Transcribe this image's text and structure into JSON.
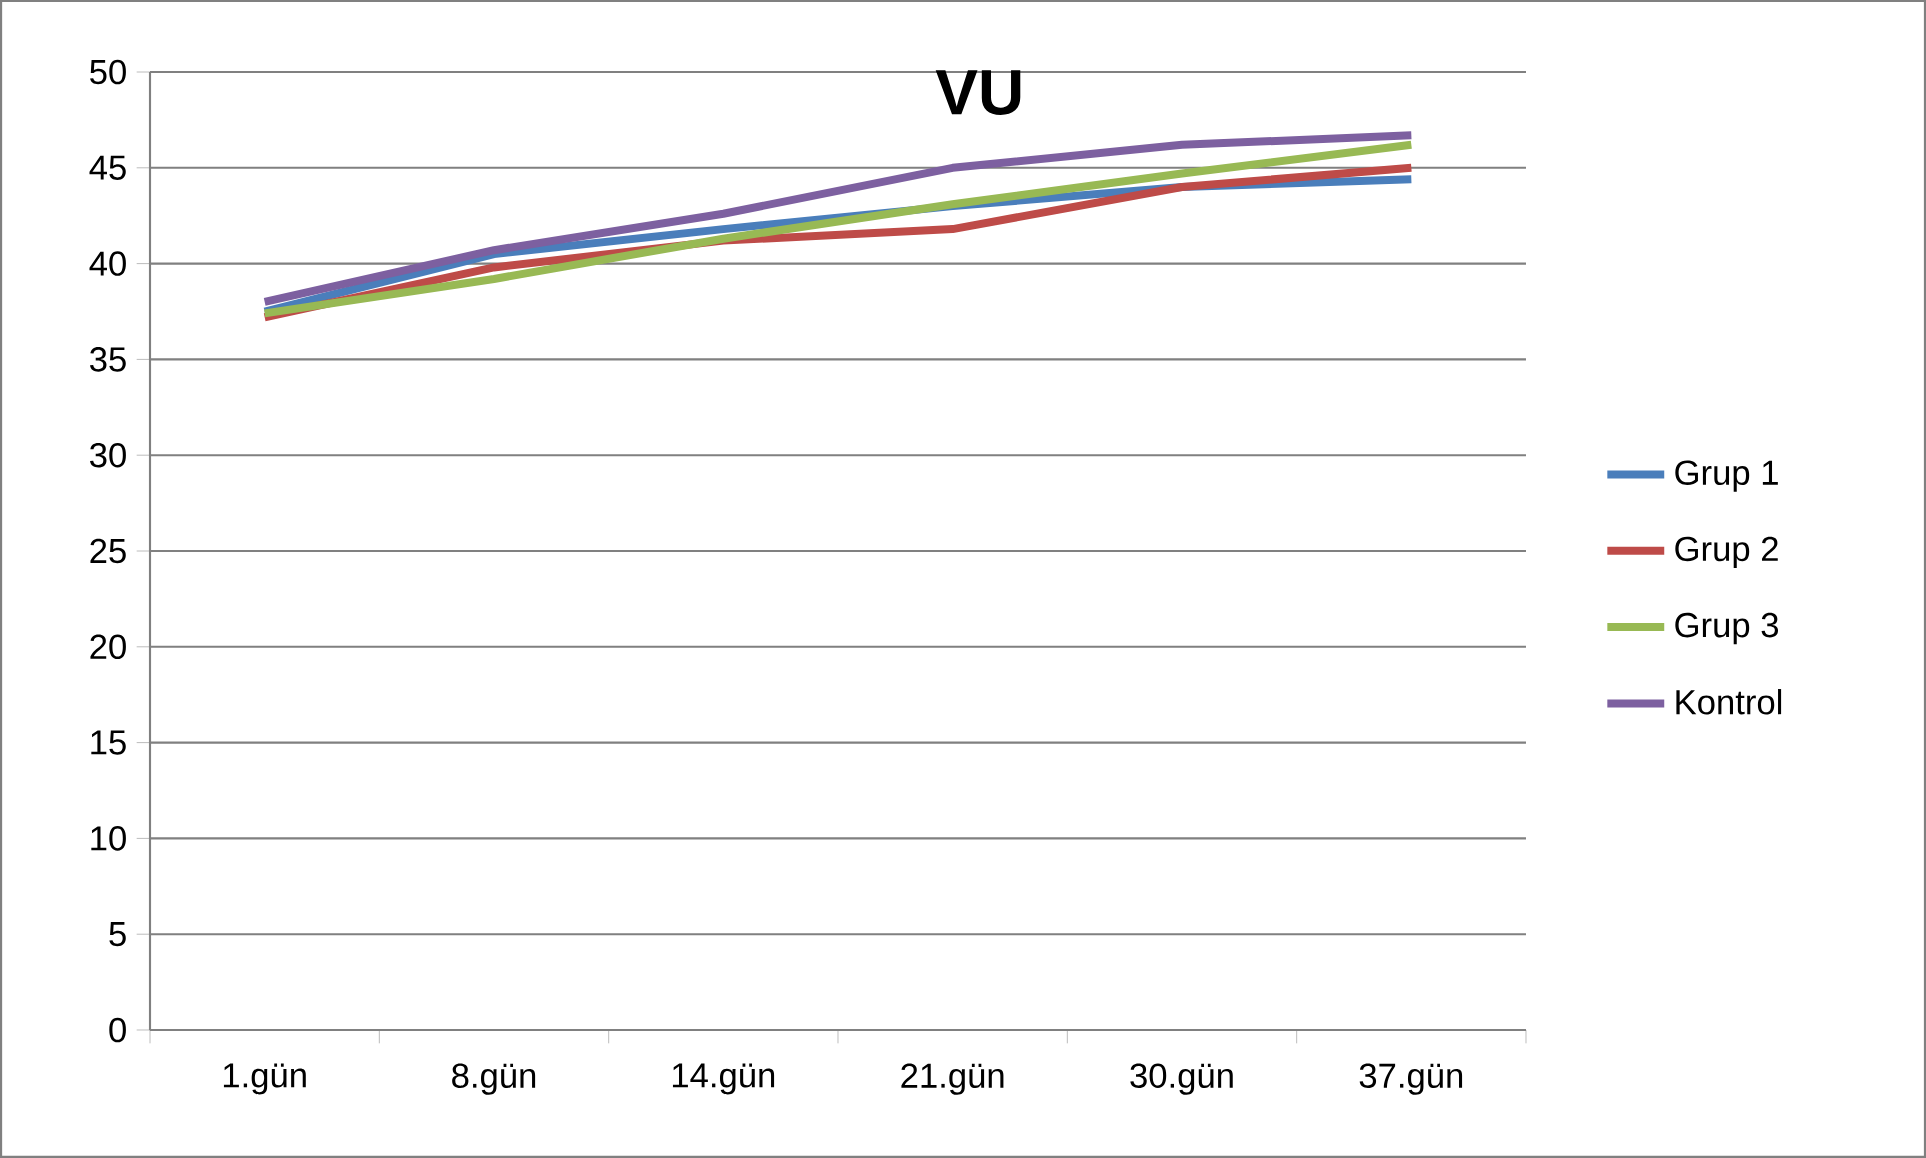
{
  "chart_data": {
    "type": "line",
    "title": "VU",
    "categories": [
      "1.gün",
      "8.gün",
      "14.gün",
      "21.gün",
      "30.gün",
      "37.gün"
    ],
    "series": [
      {
        "name": "Grup 1",
        "color": "#4a7ebb",
        "values": [
          37.5,
          40.5,
          41.8,
          43,
          44,
          44.4
        ]
      },
      {
        "name": "Grup 2",
        "color": "#be4b48",
        "values": [
          37.2,
          39.8,
          41.2,
          41.8,
          44,
          45
        ]
      },
      {
        "name": "Grup 3",
        "color": "#98b954",
        "values": [
          37.4,
          39.2,
          41.3,
          43.1,
          44.7,
          46.2
        ]
      },
      {
        "name": "Kontrol",
        "color": "#7d60a0",
        "values": [
          38,
          40.7,
          42.6,
          45,
          46.2,
          46.7
        ]
      }
    ],
    "ylim": [
      0,
      50
    ],
    "yticks": [
      0,
      5,
      10,
      15,
      20,
      25,
      30,
      35,
      40,
      45,
      50
    ],
    "grid": "y",
    "legend": "right",
    "marker": "none",
    "line_style": "solid"
  }
}
